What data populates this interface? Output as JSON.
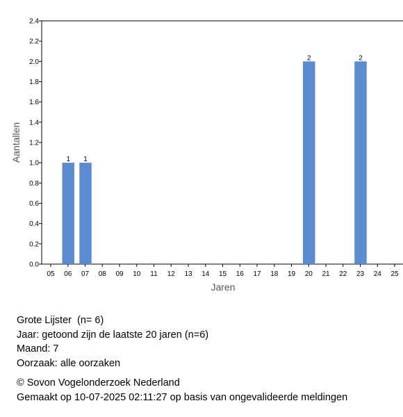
{
  "chart_data": {
    "type": "bar",
    "categories": [
      "05",
      "06",
      "07",
      "08",
      "09",
      "10",
      "11",
      "12",
      "13",
      "14",
      "15",
      "16",
      "17",
      "18",
      "19",
      "20",
      "21",
      "22",
      "23",
      "24",
      "25"
    ],
    "values": [
      0,
      1,
      1,
      0,
      0,
      0,
      0,
      0,
      0,
      0,
      0,
      0,
      0,
      0,
      0,
      2,
      0,
      0,
      2,
      0,
      0
    ],
    "data_labels": [
      "",
      "1",
      "1",
      "",
      "",
      "",
      "",
      "",
      "",
      "",
      "",
      "",
      "",
      "",
      "",
      "2",
      "",
      "",
      "2",
      "",
      ""
    ],
    "xlabel": "Jaren",
    "ylabel": "Aantallen",
    "ylim": [
      0,
      2.4
    ],
    "yticks": [
      "0.0",
      "0.2",
      "0.4",
      "0.6",
      "0.8",
      "1.0",
      "1.2",
      "1.4",
      "1.6",
      "1.8",
      "2.0",
      "2.2",
      "2.4"
    ],
    "grid": false,
    "bar_color": "#5b8bd0"
  },
  "caption": {
    "species": "Grote Lijster  (n= 6)",
    "year": "Jaar: getoond zijn de laatste 20 jaren (n=6)",
    "month": "Maand: 7",
    "cause": "Oorzaak: alle oorzaken"
  },
  "footer": {
    "copyright": "© Sovon Vogelonderzoek Nederland",
    "generated": "Gemaakt op 10-07-2025 02:11:27 op basis van ongevalideerde meldingen"
  }
}
